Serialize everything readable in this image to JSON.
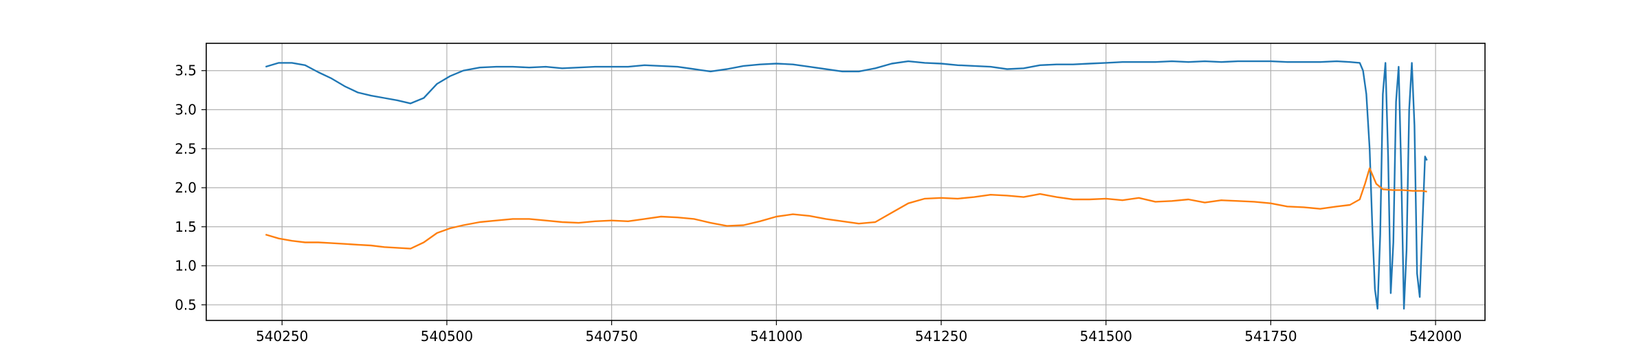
{
  "chart_data": {
    "type": "line",
    "title": "",
    "xlabel": "",
    "ylabel": "",
    "xlim": [
      540135,
      542075
    ],
    "ylim": [
      0.3,
      3.85
    ],
    "xticks": [
      540250,
      540500,
      540750,
      541000,
      541250,
      541500,
      541750,
      542000
    ],
    "yticks": [
      0.5,
      1.0,
      1.5,
      2.0,
      2.5,
      3.0,
      3.5
    ],
    "xtick_labels": [
      "540250",
      "540500",
      "540750",
      "541000",
      "541250",
      "541500",
      "541750",
      "542000"
    ],
    "ytick_labels": [
      "0.5",
      "1.0",
      "1.5",
      "2.0",
      "2.5",
      "3.0",
      "3.5"
    ],
    "grid": true,
    "legend": "none",
    "series": [
      {
        "color": "#1f77b4",
        "x": [
          540225,
          540245,
          540265,
          540285,
          540305,
          540325,
          540345,
          540365,
          540385,
          540405,
          540425,
          540445,
          540465,
          540485,
          540505,
          540525,
          540550,
          540575,
          540600,
          540625,
          540650,
          540675,
          540700,
          540725,
          540750,
          540775,
          540800,
          540825,
          540850,
          540875,
          540900,
          540925,
          540950,
          540975,
          541000,
          541025,
          541050,
          541075,
          541100,
          541125,
          541150,
          541175,
          541200,
          541225,
          541250,
          541275,
          541300,
          541325,
          541350,
          541375,
          541400,
          541425,
          541450,
          541475,
          541500,
          541525,
          541550,
          541575,
          541600,
          541625,
          541650,
          541675,
          541700,
          541725,
          541750,
          541775,
          541800,
          541825,
          541850,
          541870,
          541885,
          541890,
          541895,
          541900,
          541904,
          541908,
          541912,
          541916,
          541920,
          541924,
          541928,
          541932,
          541936,
          541940,
          541944,
          541948,
          541952,
          541956,
          541960,
          541964,
          541968,
          541972,
          541976,
          541980,
          541984,
          541987
        ],
        "y": [
          3.55,
          3.6,
          3.6,
          3.57,
          3.48,
          3.4,
          3.3,
          3.22,
          3.18,
          3.15,
          3.12,
          3.08,
          3.15,
          3.33,
          3.43,
          3.5,
          3.54,
          3.55,
          3.55,
          3.54,
          3.55,
          3.53,
          3.54,
          3.55,
          3.55,
          3.55,
          3.57,
          3.56,
          3.55,
          3.52,
          3.49,
          3.52,
          3.56,
          3.58,
          3.59,
          3.58,
          3.55,
          3.52,
          3.49,
          3.49,
          3.53,
          3.59,
          3.62,
          3.6,
          3.59,
          3.57,
          3.56,
          3.55,
          3.52,
          3.53,
          3.57,
          3.58,
          3.58,
          3.59,
          3.6,
          3.61,
          3.61,
          3.61,
          3.62,
          3.61,
          3.62,
          3.61,
          3.62,
          3.62,
          3.62,
          3.61,
          3.61,
          3.61,
          3.62,
          3.61,
          3.6,
          3.5,
          3.2,
          2.5,
          1.5,
          0.7,
          0.45,
          1.4,
          3.2,
          3.6,
          2.4,
          0.65,
          1.3,
          3.1,
          3.55,
          2.2,
          0.45,
          1.2,
          3.0,
          3.6,
          2.8,
          0.9,
          0.6,
          1.5,
          2.4,
          2.35
        ]
      },
      {
        "color": "#ff7f0e",
        "x": [
          540225,
          540245,
          540265,
          540285,
          540305,
          540325,
          540345,
          540365,
          540385,
          540405,
          540425,
          540445,
          540465,
          540485,
          540505,
          540525,
          540550,
          540575,
          540600,
          540625,
          540650,
          540675,
          540700,
          540725,
          540750,
          540775,
          540800,
          540825,
          540850,
          540875,
          540900,
          540925,
          540950,
          540975,
          541000,
          541025,
          541050,
          541075,
          541100,
          541125,
          541150,
          541175,
          541200,
          541225,
          541250,
          541275,
          541300,
          541325,
          541350,
          541375,
          541400,
          541425,
          541450,
          541475,
          541500,
          541525,
          541550,
          541575,
          541600,
          541625,
          541650,
          541675,
          541700,
          541725,
          541750,
          541775,
          541800,
          541825,
          541850,
          541870,
          541885,
          541893,
          541900,
          541910,
          541920,
          541935,
          541950,
          541965,
          541980,
          541987
        ],
        "y": [
          1.4,
          1.35,
          1.32,
          1.3,
          1.3,
          1.29,
          1.28,
          1.27,
          1.26,
          1.24,
          1.23,
          1.22,
          1.3,
          1.42,
          1.48,
          1.52,
          1.56,
          1.58,
          1.6,
          1.6,
          1.58,
          1.56,
          1.55,
          1.57,
          1.58,
          1.57,
          1.6,
          1.63,
          1.62,
          1.6,
          1.55,
          1.51,
          1.52,
          1.57,
          1.63,
          1.66,
          1.64,
          1.6,
          1.57,
          1.54,
          1.56,
          1.68,
          1.8,
          1.86,
          1.87,
          1.86,
          1.88,
          1.91,
          1.9,
          1.88,
          1.92,
          1.88,
          1.85,
          1.85,
          1.86,
          1.84,
          1.87,
          1.82,
          1.83,
          1.85,
          1.81,
          1.84,
          1.83,
          1.82,
          1.8,
          1.76,
          1.75,
          1.73,
          1.76,
          1.78,
          1.85,
          2.05,
          2.25,
          2.05,
          1.98,
          1.97,
          1.97,
          1.96,
          1.96,
          1.95
        ]
      }
    ]
  }
}
